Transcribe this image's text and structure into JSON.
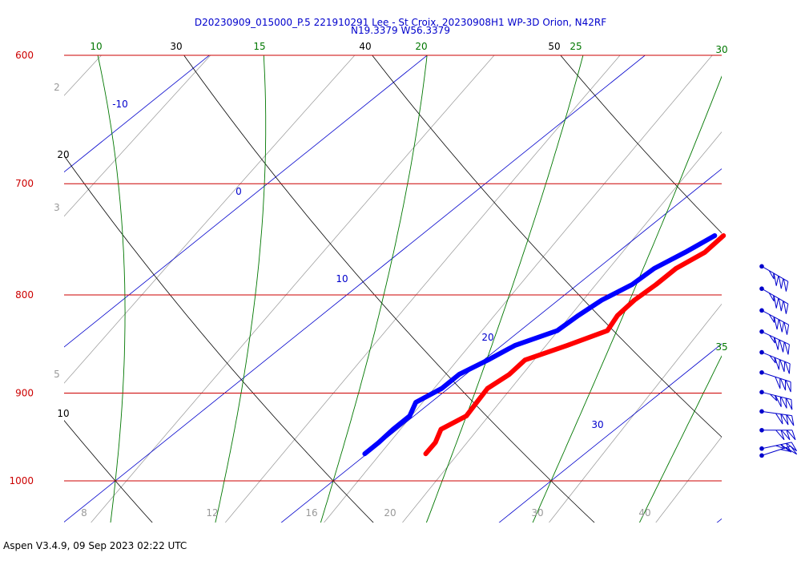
{
  "header": {
    "title_line1": "D20230909_015000_P.5 221910291 Lee - St Croix, 20230908H1 WP-3D Orion, N42RF",
    "title_line2": "N19.3379 W56.3379"
  },
  "footer": {
    "text": "Aspen V3.4.9, 09 Sep 2023  02:22 UTC"
  },
  "chart_data": {
    "type": "line",
    "title": "D20230909_015000_P.5 221910291 Lee - St Croix, 20230908H1 WP-3D Orion, N42RF",
    "subtitle": "N19.3379 W56.3379",
    "pressure_levels": [
      {
        "p": 600,
        "label": "600"
      },
      {
        "p": 700,
        "label": "700"
      },
      {
        "p": 800,
        "label": "800"
      },
      {
        "p": 900,
        "label": "900"
      },
      {
        "p": 1000,
        "label": "1000"
      }
    ],
    "isotherms": [
      {
        "t": -10,
        "label": "-10"
      },
      {
        "t": 0,
        "label": "0"
      },
      {
        "t": 10,
        "label": "10"
      },
      {
        "t": 20,
        "label": "20"
      },
      {
        "t": 30,
        "label": "30"
      }
    ],
    "dry_adiabat_labels": [
      "30",
      "40",
      "50",
      "20",
      "10"
    ],
    "moist_adiabat_labels": [
      "10",
      "15",
      "20",
      "25",
      "30",
      "35"
    ],
    "mixing_ratio_top_labels": [
      "2",
      "3",
      "5"
    ],
    "mixing_ratio_bottom_labels": [
      "8",
      "12",
      "16",
      "20",
      "30",
      "40"
    ],
    "series": [
      {
        "name": "",
        "role": "temperature",
        "color": "#ff0000",
        "points": [
          [
            745,
            23.9
          ],
          [
            760,
            24.0
          ],
          [
            775,
            23.6
          ],
          [
            790,
            23.6
          ],
          [
            805,
            23.5
          ],
          [
            820,
            23.6
          ],
          [
            835,
            24.0
          ],
          [
            850,
            23.0
          ],
          [
            865,
            21.9
          ],
          [
            880,
            22.0
          ],
          [
            895,
            21.8
          ],
          [
            910,
            22.1
          ],
          [
            925,
            22.4
          ],
          [
            940,
            22.0
          ],
          [
            955,
            22.5
          ],
          [
            968,
            22.7
          ]
        ]
      },
      {
        "name": "",
        "role": "dewpoint",
        "color": "#0000ff",
        "points": [
          [
            745,
            23.5
          ],
          [
            760,
            23.1
          ],
          [
            775,
            22.6
          ],
          [
            790,
            22.5
          ],
          [
            805,
            22.0
          ],
          [
            820,
            21.8
          ],
          [
            835,
            21.7
          ],
          [
            850,
            20.6
          ],
          [
            865,
            20.2
          ],
          [
            880,
            19.7
          ],
          [
            895,
            19.7
          ],
          [
            910,
            19.3
          ],
          [
            925,
            19.8
          ],
          [
            940,
            19.8
          ],
          [
            955,
            19.9
          ],
          [
            968,
            19.9
          ]
        ]
      }
    ],
    "wind_barbs": {
      "color": "#0000cc",
      "levels": [
        {
          "p": 773,
          "speed_kt": 35,
          "dir_deg": 120
        },
        {
          "p": 794,
          "speed_kt": 35,
          "dir_deg": 120
        },
        {
          "p": 815,
          "speed_kt": 35,
          "dir_deg": 118
        },
        {
          "p": 836,
          "speed_kt": 35,
          "dir_deg": 115
        },
        {
          "p": 857,
          "speed_kt": 35,
          "dir_deg": 112
        },
        {
          "p": 878,
          "speed_kt": 30,
          "dir_deg": 108
        },
        {
          "p": 899,
          "speed_kt": 35,
          "dir_deg": 104
        },
        {
          "p": 920,
          "speed_kt": 30,
          "dir_deg": 98
        },
        {
          "p": 941,
          "speed_kt": 30,
          "dir_deg": 90
        },
        {
          "p": 962,
          "speed_kt": 25,
          "dir_deg": 78
        },
        {
          "p": 970,
          "speed_kt": 15,
          "dir_deg": 72
        }
      ]
    },
    "colors": {
      "isobar": "#cc0000",
      "isotherm": "#0000cc",
      "dry_adiabat": "#000000",
      "moist_adiabat": "#007700",
      "mixing_ratio": "#999999",
      "title": "#0000cc"
    },
    "grid": true
  }
}
